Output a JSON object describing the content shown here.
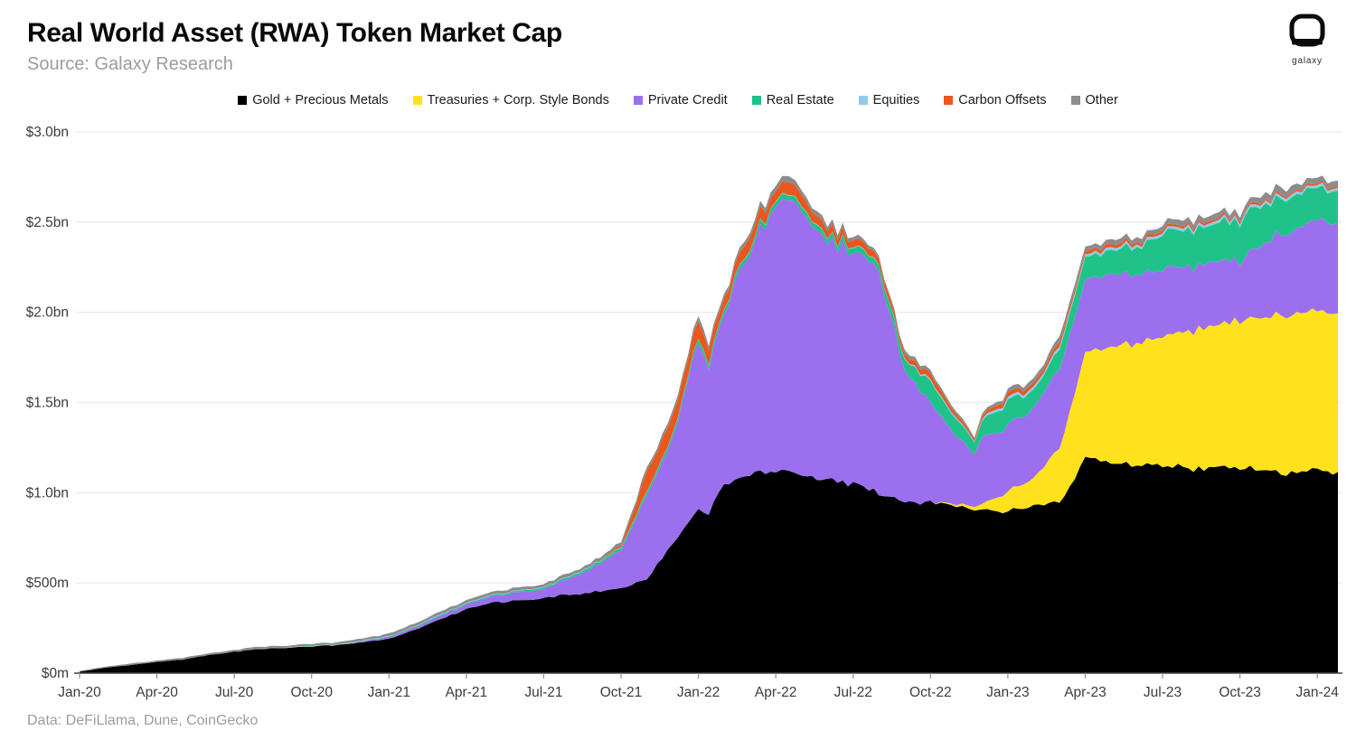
{
  "header": {
    "title": "Real World Asset (RWA) Token Market Cap",
    "source": "Source: Galaxy Research",
    "logo_word": "galaxy"
  },
  "footer": {
    "text": "Data: DeFiLlama, Dune, CoinGecko"
  },
  "legend": {
    "items": [
      {
        "label": "Gold + Precious Metals",
        "color": "#000000"
      },
      {
        "label": "Treasuries + Corp. Style Bonds",
        "color": "#FFE21C"
      },
      {
        "label": "Private Credit",
        "color": "#9C6FEF"
      },
      {
        "label": "Real Estate",
        "color": "#1FC289"
      },
      {
        "label": "Equities",
        "color": "#8DCCEB"
      },
      {
        "label": "Carbon Offsets",
        "color": "#EA571E"
      },
      {
        "label": "Other",
        "color": "#8C8C8C"
      }
    ]
  },
  "chart_data": {
    "type": "area",
    "stacked": true,
    "title": "Real World Asset (RWA) Token Market Cap",
    "values_unit": "USD millions",
    "x_unit": "months since Jan-2020",
    "xlim": [
      0,
      48.8
    ],
    "ylim": [
      0,
      3000
    ],
    "grid": "horizontal",
    "legend_position": "top-center",
    "y_tick_values": [
      0,
      500,
      1000,
      1500,
      2000,
      2500,
      3000
    ],
    "y_tick_labels": [
      "$0m",
      "$500m",
      "$1.0bn",
      "$1.5bn",
      "$2.0bn",
      "$2.5bn",
      "$3.0bn"
    ],
    "x_tick_positions": [
      0,
      3,
      6,
      9,
      12,
      15,
      18,
      21,
      24,
      27,
      30,
      33,
      36,
      39,
      42,
      45,
      48
    ],
    "x_tick_labels": [
      "Jan-20",
      "Apr-20",
      "Jul-20",
      "Oct-20",
      "Jan-21",
      "Apr-21",
      "Jul-21",
      "Oct-21",
      "Jan-22",
      "Apr-22",
      "Jul-22",
      "Oct-22",
      "Jan-23",
      "Apr-23",
      "Jul-23",
      "Oct-23",
      "Jan-24"
    ],
    "x": [
      0,
      1,
      2,
      3,
      4,
      5,
      6,
      7,
      8,
      9,
      10,
      11,
      12,
      13,
      14,
      15,
      16,
      17,
      18,
      19,
      20,
      21,
      22,
      23,
      24,
      24.4,
      25,
      26,
      27,
      27.5,
      28,
      29,
      30,
      31,
      32,
      33,
      34,
      34.7,
      35,
      36,
      37,
      38,
      39,
      40,
      41,
      42,
      43,
      44,
      45,
      46,
      47,
      48,
      48.8
    ],
    "series": [
      {
        "name": "Gold + Precious Metals",
        "color": "#000000",
        "values": [
          8,
          30,
          45,
          62,
          75,
          100,
          118,
          135,
          140,
          148,
          155,
          170,
          190,
          240,
          300,
          355,
          390,
          400,
          415,
          435,
          450,
          465,
          525,
          720,
          900,
          890,
          1050,
          1100,
          1120,
          1110,
          1100,
          1075,
          1050,
          1000,
          960,
          940,
          930,
          890,
          900,
          900,
          930,
          945,
          1190,
          1175,
          1160,
          1150,
          1140,
          1130,
          1140,
          1120,
          1110,
          1130,
          1115
        ]
      },
      {
        "name": "Treasuries + Corp. Style Bonds",
        "color": "#FFE21C",
        "values": [
          0,
          0,
          0,
          0,
          0,
          0,
          0,
          0,
          0,
          0,
          0,
          0,
          0,
          0,
          0,
          0,
          0,
          0,
          0,
          0,
          0,
          0,
          0,
          0,
          0,
          0,
          0,
          0,
          0,
          0,
          0,
          0,
          0,
          0,
          0,
          0,
          10,
          20,
          30,
          110,
          150,
          300,
          585,
          640,
          680,
          710,
          760,
          790,
          820,
          860,
          880,
          885,
          880
        ]
      },
      {
        "name": "Private Credit",
        "color": "#9C6FEF",
        "values": [
          0,
          0,
          0,
          0,
          0,
          0,
          0,
          0,
          0,
          0,
          0,
          5,
          8,
          12,
          18,
          25,
          35,
          45,
          50,
          90,
          140,
          210,
          460,
          580,
          925,
          800,
          950,
          1250,
          1455,
          1490,
          1450,
          1315,
          1290,
          1230,
          735,
          545,
          375,
          290,
          360,
          365,
          390,
          430,
          410,
          400,
          390,
          375,
          360,
          350,
          330,
          420,
          470,
          500,
          505
        ]
      },
      {
        "name": "Real Estate",
        "color": "#1FC289",
        "values": [
          0,
          0,
          0,
          0,
          0,
          0,
          0,
          0,
          0,
          2,
          2,
          3,
          4,
          5,
          6,
          6,
          6,
          7,
          8,
          10,
          12,
          15,
          20,
          22,
          25,
          25,
          25,
          28,
          28,
          28,
          28,
          30,
          32,
          35,
          60,
          115,
          95,
          70,
          90,
          140,
          95,
          110,
          125,
          130,
          150,
          190,
          200,
          205,
          230,
          215,
          195,
          175,
          175
        ]
      },
      {
        "name": "Equities",
        "color": "#8DCCEB",
        "values": [
          0,
          0,
          0,
          0,
          0,
          0,
          0,
          2,
          2,
          2,
          2,
          2,
          2,
          3,
          3,
          3,
          3,
          3,
          3,
          3,
          3,
          3,
          3,
          3,
          3,
          3,
          3,
          3,
          3,
          3,
          3,
          3,
          3,
          3,
          5,
          8,
          8,
          6,
          10,
          15,
          15,
          15,
          15,
          15,
          15,
          15,
          15,
          15,
          15,
          15,
          15,
          15,
          15
        ]
      },
      {
        "name": "Carbon Offsets",
        "color": "#EA571E",
        "values": [
          0,
          0,
          0,
          0,
          0,
          0,
          0,
          0,
          0,
          0,
          0,
          0,
          0,
          0,
          0,
          0,
          0,
          0,
          0,
          0,
          0,
          10,
          105,
          100,
          95,
          75,
          60,
          70,
          60,
          65,
          60,
          45,
          40,
          35,
          25,
          35,
          20,
          12,
          15,
          25,
          20,
          25,
          20,
          18,
          15,
          12,
          12,
          12,
          10,
          10,
          10,
          10,
          10
        ]
      },
      {
        "name": "Other",
        "color": "#8C8C8C",
        "values": [
          4,
          6,
          8,
          8,
          9,
          10,
          10,
          10,
          10,
          10,
          11,
          12,
          14,
          15,
          16,
          15,
          16,
          16,
          17,
          18,
          18,
          20,
          22,
          22,
          27,
          25,
          25,
          25,
          30,
          30,
          28,
          25,
          20,
          15,
          20,
          18,
          15,
          10,
          15,
          20,
          25,
          30,
          25,
          25,
          25,
          28,
          28,
          30,
          30,
          35,
          35,
          30,
          30
        ]
      }
    ]
  }
}
